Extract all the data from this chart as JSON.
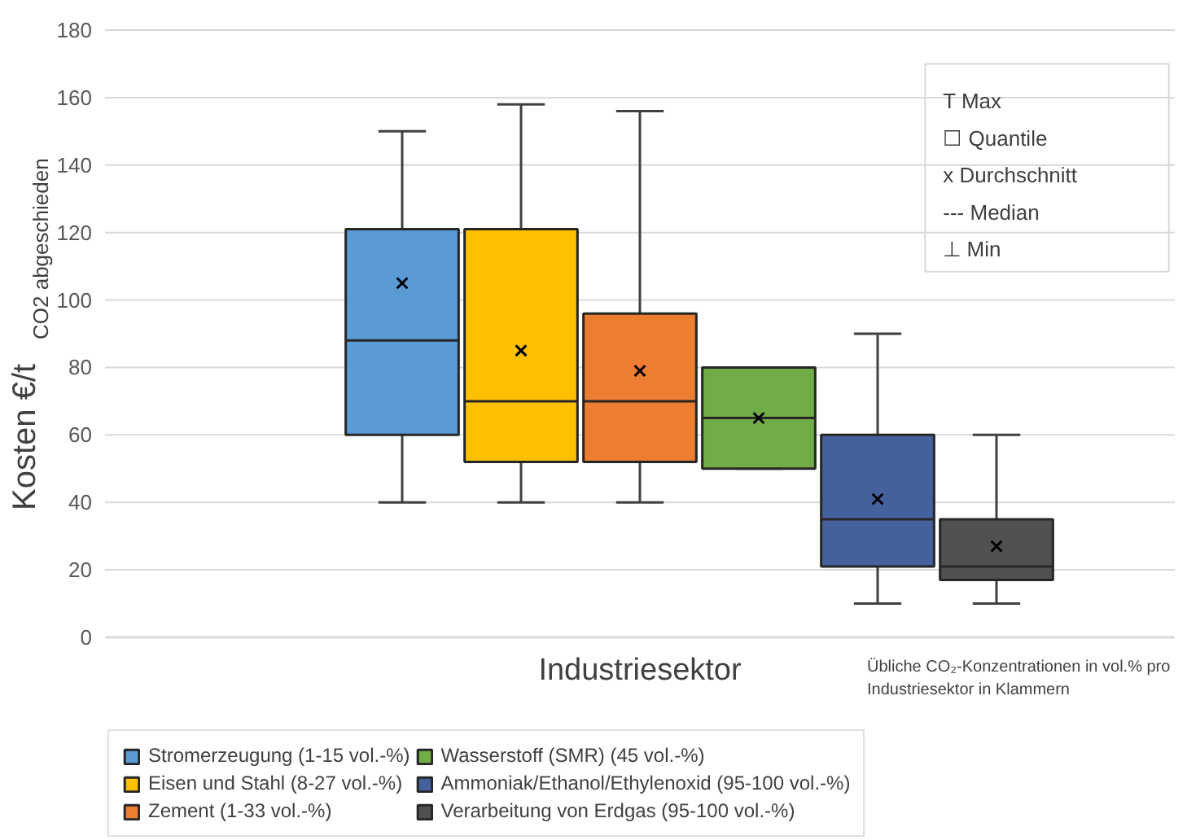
{
  "chart_data": {
    "type": "box",
    "ylabel": "Kosten €/t$_{CO2 abgeschieden}$",
    "xlabel": "Industriesektor",
    "categories": [
      null,
      null,
      null,
      null,
      null,
      null,
      null,
      null,
      null
    ],
    "ylim": [
      0,
      180
    ],
    "yticks": [
      0,
      20,
      40,
      60,
      80,
      100,
      120,
      140,
      160,
      180
    ],
    "grid": "y",
    "legend": "bottom",
    "series": [
      {
        "name": "Stromerzeugung (1-15 vol.-%)",
        "color": "#5b9bd5",
        "boxes": [
          null,
          null,
          {
            "low": 40,
            "q1": 60,
            "median": 88,
            "q3": 121,
            "high": 150,
            "mean": 105
          },
          null,
          null,
          null,
          null,
          null,
          null
        ]
      },
      {
        "name": "Eisen und Stahl (8-27 vol.-%)",
        "color": "#ffc000",
        "boxes": [
          null,
          null,
          null,
          {
            "low": 40,
            "q1": 52,
            "median": 70,
            "q3": 121,
            "high": 158,
            "mean": 85
          },
          null,
          null,
          null,
          null,
          null
        ]
      },
      {
        "name": "Zement (1-33 vol.-%)",
        "color": "#ed7d31",
        "boxes": [
          null,
          null,
          null,
          null,
          {
            "low": 40,
            "q1": 52,
            "median": 70,
            "q3": 96,
            "high": 156,
            "mean": 79
          },
          null,
          null,
          null,
          null
        ]
      },
      {
        "name": "Wasserstoff (SMR) (45 vol.-%)",
        "color": "#70ad47",
        "boxes": [
          null,
          null,
          null,
          null,
          null,
          {
            "low": 50,
            "q1": 50,
            "median": 65,
            "q3": 80,
            "high": 80,
            "mean": 65
          },
          null,
          null,
          null
        ]
      },
      {
        "name": "Ammoniak/Ethanol/Ethylenoxid (95-100 vol.-%)",
        "color": "#44619e",
        "boxes": [
          null,
          null,
          null,
          null,
          null,
          null,
          {
            "low": 10,
            "q1": 21,
            "median": 35,
            "q3": 60,
            "high": 90,
            "mean": 41
          },
          null,
          null
        ]
      },
      {
        "name": "Verarbeitung von Erdgas (95-100 vol.-%)",
        "color": "#505050",
        "boxes": [
          null,
          null,
          null,
          null,
          null,
          null,
          null,
          {
            "low": 10,
            "q1": 17,
            "median": 21,
            "q3": 35,
            "high": 60,
            "mean": 27
          },
          null
        ]
      }
    ],
    "annotations": [
      "T  Max",
      "☐  Quantile",
      "x  Durchschnitt",
      "---  Median",
      "⊥  Min",
      "Übliche CO₂-Konzentrationen in vol.% pro Industriesektor in Klammern"
    ]
  }
}
